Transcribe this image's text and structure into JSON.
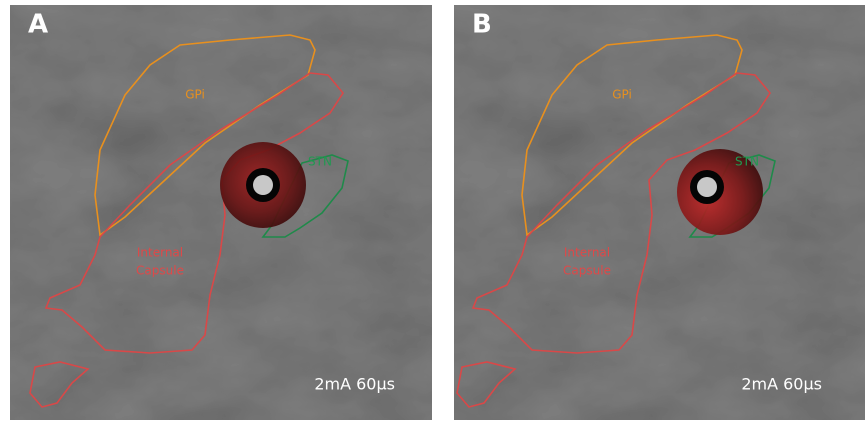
{
  "panels": [
    {
      "label": "A",
      "annotation": "2mA 60µs"
    },
    {
      "label": "B",
      "annotation": "2mA 60µs"
    }
  ],
  "regions": {
    "gpi": "GPi",
    "internal_capsule": [
      "Internal",
      "Capsule"
    ],
    "stn": "STN"
  }
}
